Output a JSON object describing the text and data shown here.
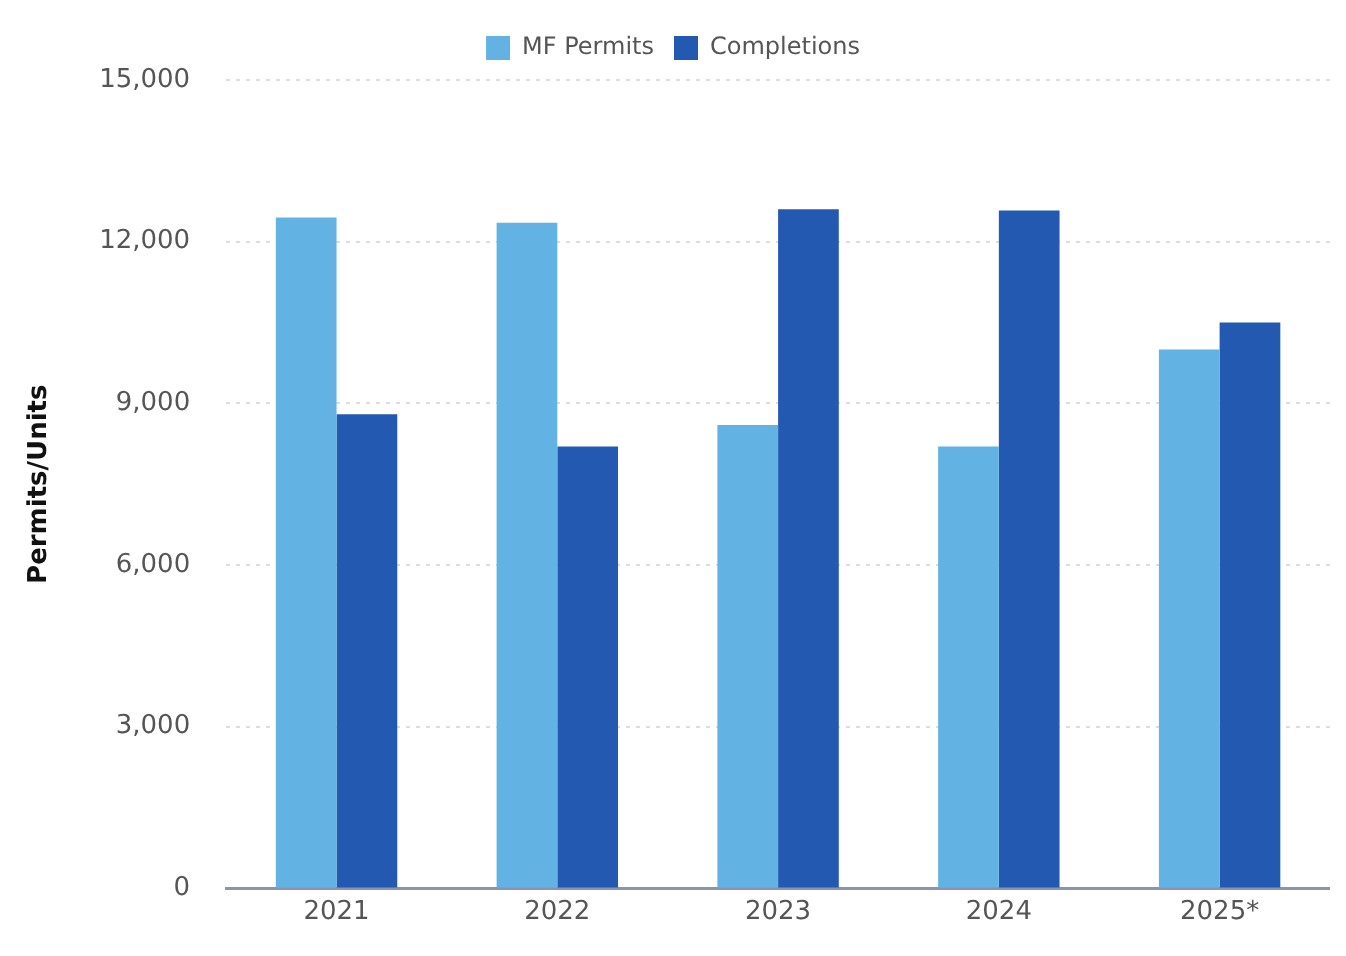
{
  "chart_data": {
    "type": "bar",
    "ylabel": "Permits/Units",
    "categories": [
      "2021",
      "2022",
      "2023",
      "2024",
      "2025*"
    ],
    "series": [
      {
        "name": "MF Permits",
        "color": "#62b3e4",
        "values": [
          12450,
          12350,
          8600,
          8200,
          10000
        ]
      },
      {
        "name": "Completions",
        "color": "#2459b2",
        "values": [
          8800,
          8200,
          12600,
          12580,
          10500
        ]
      }
    ],
    "ylim": [
      0,
      15000
    ],
    "yticks": [
      {
        "value": 0,
        "label": "0"
      },
      {
        "value": 3000,
        "label": "3,000"
      },
      {
        "value": 6000,
        "label": "6,000"
      },
      {
        "value": 9000,
        "label": "9,000"
      },
      {
        "value": 12000,
        "label": "12,000"
      },
      {
        "value": 15000,
        "label": "15,000"
      }
    ],
    "grid": "y",
    "legend": "top"
  }
}
